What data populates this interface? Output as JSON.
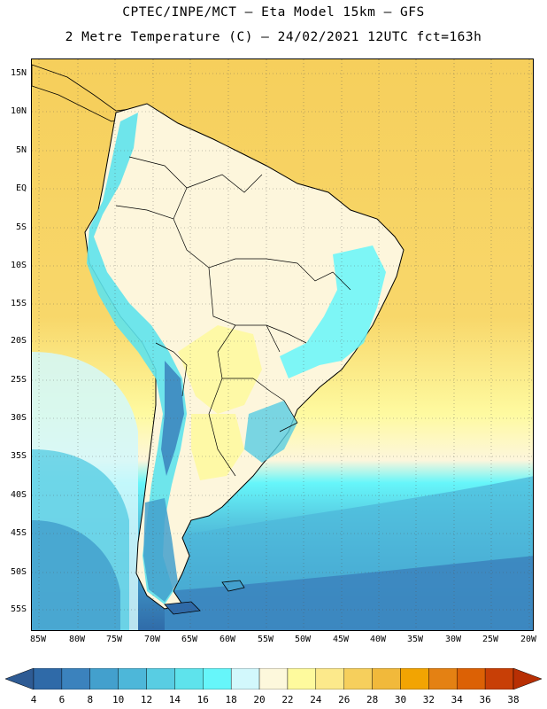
{
  "header": {
    "line1": "CPTEC/INPE/MCT –  Eta Model 15km – GFS",
    "line2": "2 Metre Temperature (C) – 24/02/2021 12UTC fct=163h"
  },
  "map": {
    "lat_labels": [
      "15N",
      "10N",
      "5N",
      "EQ",
      "5S",
      "10S",
      "15S",
      "20S",
      "25S",
      "30S",
      "35S",
      "40S",
      "45S",
      "50S",
      "55S"
    ],
    "lon_labels": [
      "85W",
      "80W",
      "75W",
      "70W",
      "65W",
      "60W",
      "55W",
      "50W",
      "45W",
      "40W",
      "35W",
      "30W",
      "25W",
      "20W"
    ],
    "colors": {
      "ocean_warm": "#f6cf5c",
      "land_mild": "#fdf6dc",
      "ocean_mid": "#fefaa0",
      "cold_deep": "#2a5b9a"
    }
  },
  "colorbar": {
    "levels": [
      "4",
      "6",
      "8",
      "10",
      "12",
      "14",
      "16",
      "18",
      "20",
      "22",
      "24",
      "26",
      "28",
      "30",
      "32",
      "34",
      "36",
      "38"
    ],
    "colors": [
      "#2f6aa8",
      "#3b82bd",
      "#43a0cd",
      "#4db7d9",
      "#58cde3",
      "#5ee3ec",
      "#66f6fa",
      "#d2f8fc",
      "#fdf8dc",
      "#fefa9d",
      "#fce98b",
      "#f6cf5c",
      "#f1b93b",
      "#f2a402",
      "#e48113",
      "#dc6105",
      "#c83f06",
      "#b82f04"
    ],
    "left_cap_color": "#2e5b94",
    "right_cap_color": "#b82f04"
  }
}
